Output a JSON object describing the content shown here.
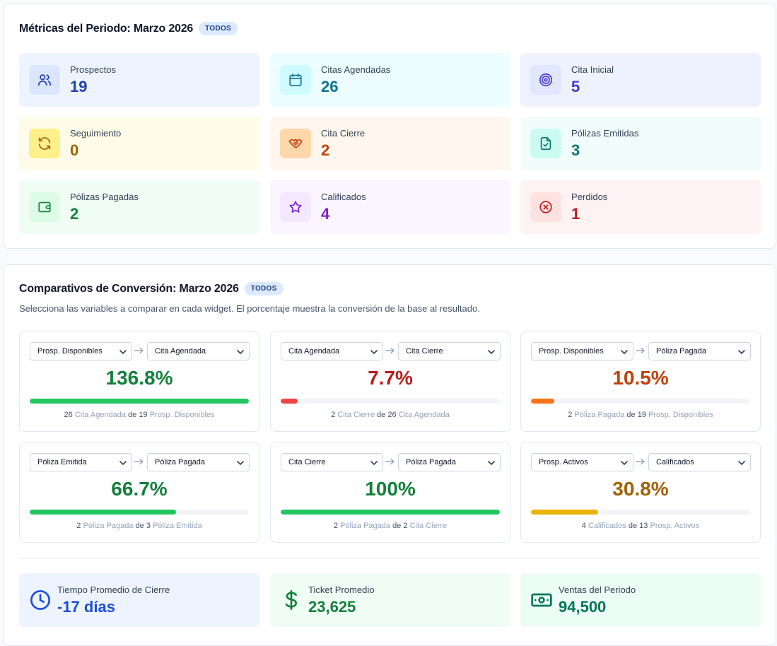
{
  "metrics_panel": {
    "title": "Métricas del Periodo: Marzo 2026",
    "badge": "TODOS",
    "cards": [
      {
        "label": "Prospectos",
        "value": "19",
        "icon": "users-icon",
        "bg": "#eef4ff",
        "icon_bg": "#dbe6fe",
        "color": "#1e40af"
      },
      {
        "label": "Citas Agendadas",
        "value": "26",
        "icon": "calendar-icon",
        "bg": "#ecfeff",
        "icon_bg": "#cffafe",
        "color": "#0e7490"
      },
      {
        "label": "Cita Inicial",
        "value": "5",
        "icon": "target-icon",
        "bg": "#eef2ff",
        "icon_bg": "#e0e7ff",
        "color": "#4338ca"
      },
      {
        "label": "Seguimiento",
        "value": "0",
        "icon": "refresh-icon",
        "bg": "#fefce8",
        "icon_bg": "#fef08a",
        "color": "#a16207"
      },
      {
        "label": "Cita Cierre",
        "value": "2",
        "icon": "handshake-icon",
        "bg": "#fff7ed",
        "icon_bg": "#fed7aa",
        "color": "#c2410c"
      },
      {
        "label": "Pólizas Emitidas",
        "value": "3",
        "icon": "file-check-icon",
        "bg": "#f0fdfa",
        "icon_bg": "#ccfbf1",
        "color": "#0f766e"
      },
      {
        "label": "Pólizas Pagadas",
        "value": "2",
        "icon": "wallet-icon",
        "bg": "#f0fdf4",
        "icon_bg": "#dcfce7",
        "color": "#15803d"
      },
      {
        "label": "Calificados",
        "value": "4",
        "icon": "star-icon",
        "bg": "#faf5ff",
        "icon_bg": "#f3e8ff",
        "color": "#7e22ce"
      },
      {
        "label": "Perdidos",
        "value": "1",
        "icon": "x-circle-icon",
        "bg": "#fef2f2",
        "icon_bg": "#fee2e2",
        "color": "#b91c1c"
      }
    ]
  },
  "conversion_panel": {
    "title": "Comparativos de Conversión: Marzo 2026",
    "badge": "TODOS",
    "subtitle": "Selecciona las variables a comparar en cada widget. El porcentaje muestra la conversión de la base al resultado.",
    "widgets": [
      {
        "from": "Prosp. Disponibles",
        "to": "Cita Agendada",
        "percent": "136.8%",
        "fill": 1.0,
        "color": "#15803d",
        "bar": "#22c55e",
        "result_count": "26",
        "result_name": "Cita Agendada",
        "of": "de",
        "base_count": "19",
        "base_name": "Prosp. Disponibles"
      },
      {
        "from": "Cita Agendada",
        "to": "Cita Cierre",
        "percent": "7.7%",
        "fill": 0.077,
        "color": "#b91c1c",
        "bar": "#ef4444",
        "result_count": "2",
        "result_name": "Cita Cierre",
        "of": "de",
        "base_count": "26",
        "base_name": "Cita Agendada"
      },
      {
        "from": "Prosp. Disponibles",
        "to": "Póliza Pagada",
        "percent": "10.5%",
        "fill": 0.105,
        "color": "#c2410c",
        "bar": "#f97316",
        "result_count": "2",
        "result_name": "Póliza Pagada",
        "of": "de",
        "base_count": "19",
        "base_name": "Prosp. Disponibles"
      },
      {
        "from": "Póliza Emitida",
        "to": "Póliza Pagada",
        "percent": "66.7%",
        "fill": 0.667,
        "color": "#15803d",
        "bar": "#22c55e",
        "result_count": "2",
        "result_name": "Póliza Pagada",
        "of": "de",
        "base_count": "3",
        "base_name": "Póliza Emitida"
      },
      {
        "from": "Cita Cierre",
        "to": "Póliza Pagada",
        "percent": "100%",
        "fill": 1.0,
        "color": "#15803d",
        "bar": "#22c55e",
        "result_count": "2",
        "result_name": "Póliza Pagada",
        "of": "de",
        "base_count": "2",
        "base_name": "Cita Cierre"
      },
      {
        "from": "Prosp. Activos",
        "to": "Calificados",
        "percent": "30.8%",
        "fill": 0.308,
        "color": "#a16207",
        "bar": "#eab308",
        "result_count": "4",
        "result_name": "Calificados",
        "of": "de",
        "base_count": "13",
        "base_name": "Prosp. Activos"
      }
    ],
    "kpis": [
      {
        "label": "Tiempo Promedio de Cierre",
        "value": "-17 días",
        "icon": "clock-icon",
        "bg": "#eef4ff",
        "color": "#1d4ed8"
      },
      {
        "label": "Ticket Promedio",
        "value": "23,625",
        "icon": "dollar-icon",
        "bg": "#f0fdf4",
        "color": "#15803d"
      },
      {
        "label": "Ventas del Periodo",
        "value": "94,500",
        "icon": "banknote-icon",
        "bg": "#ecfdf5",
        "color": "#047857"
      }
    ]
  }
}
